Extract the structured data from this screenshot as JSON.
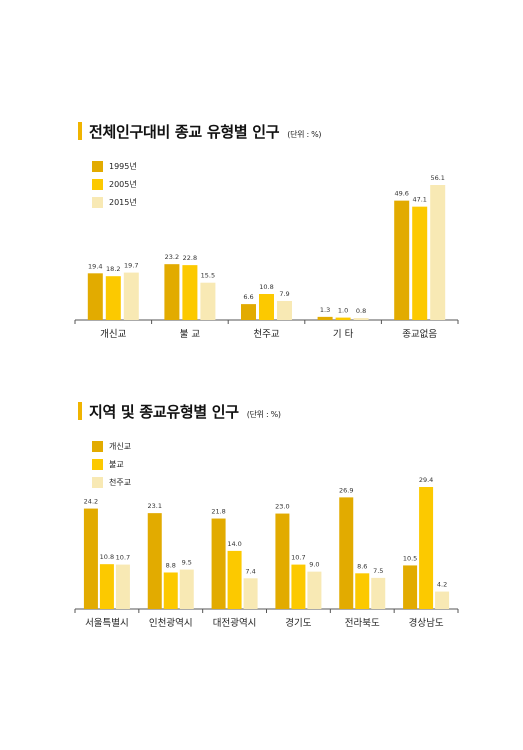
{
  "chart_data": [
    {
      "type": "bar",
      "title": "전체인구대비 종교 유형별 인구",
      "unit": "(단위 : %)",
      "categories": [
        "개신교",
        "불 교",
        "천주교",
        "기 타",
        "종교없음"
      ],
      "series": [
        {
          "name": "1995년",
          "color": "#e2ab00",
          "values": [
            19.4,
            23.2,
            6.6,
            1.3,
            49.6
          ]
        },
        {
          "name": "2005년",
          "color": "#fcc900",
          "values": [
            18.2,
            22.8,
            10.8,
            1.0,
            47.1
          ]
        },
        {
          "name": "2015년",
          "color": "#f8e9b4",
          "values": [
            19.7,
            15.5,
            7.9,
            0.8,
            56.1
          ]
        }
      ],
      "value_labels": [
        [
          "19.4",
          "23.2",
          "6.6",
          "1.3",
          "49.6"
        ],
        [
          "18.2",
          "22.8",
          "10.8",
          "1.0",
          "47.1"
        ],
        [
          "19.7",
          "15.5",
          "7.9",
          "0.8",
          "56.1"
        ]
      ],
      "legend_position": "top-left",
      "ylim": [
        0,
        56.1
      ],
      "grid": false
    },
    {
      "type": "bar",
      "title": "지역 및 종교유형별 인구",
      "unit": "(단위 : %)",
      "categories": [
        "서울특별시",
        "인천광역시",
        "대전광역시",
        "경기도",
        "전라북도",
        "경상남도"
      ],
      "series": [
        {
          "name": "개신교",
          "color": "#e2ab00",
          "values": [
            24.2,
            23.1,
            21.8,
            23.0,
            26.9,
            10.5
          ]
        },
        {
          "name": "불교",
          "color": "#fcc900",
          "values": [
            10.8,
            8.8,
            14.0,
            10.7,
            8.6,
            29.4
          ]
        },
        {
          "name": "천주교",
          "color": "#f8e9b4",
          "values": [
            10.7,
            9.5,
            7.4,
            9.0,
            7.5,
            4.2
          ]
        }
      ],
      "value_labels": [
        [
          "24.2",
          "23.1",
          "21.8",
          "23.0",
          "26.9",
          "10.5"
        ],
        [
          "10.8",
          "8.8",
          "14.0",
          "10.7",
          "8.6",
          "29.4"
        ],
        [
          "10.7",
          "9.5",
          "7.4",
          "9.0",
          "7.5",
          "4.2"
        ]
      ],
      "legend_position": "top-left",
      "ylim": [
        0,
        29.4
      ],
      "grid": false
    }
  ]
}
